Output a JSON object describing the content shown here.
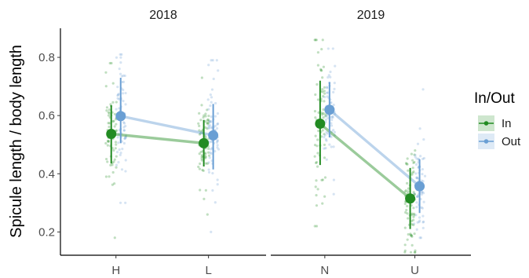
{
  "chart_data": {
    "type": "scatter",
    "ylabel": "Spicule length / body length",
    "ylim": [
      0.12,
      0.9
    ],
    "yticks": [
      0.2,
      0.4,
      0.6,
      0.8
    ],
    "grid": false,
    "legend_placement": "right",
    "legend_title": "In/Out",
    "series": [
      {
        "name": "In",
        "color": "#228B22"
      },
      {
        "name": "Out",
        "color": "#6A9FD4"
      }
    ],
    "panels": [
      {
        "title": "2018",
        "categories": [
          "H",
          "L"
        ],
        "means": {
          "In": [
            {
              "y": 0.537,
              "lo": 0.435,
              "hi": 0.635
            },
            {
              "y": 0.505,
              "lo": 0.425,
              "hi": 0.585
            }
          ],
          "Out": [
            {
              "y": 0.598,
              "lo": 0.505,
              "hi": 0.73
            },
            {
              "y": 0.532,
              "lo": 0.415,
              "hi": 0.64
            }
          ]
        },
        "raw_ranges": {
          "In": [
            [
              0.18,
              0.78
            ],
            [
              0.26,
              0.73
            ]
          ],
          "Out": [
            [
              0.3,
              0.81
            ],
            [
              0.2,
              0.79
            ]
          ]
        }
      },
      {
        "title": "2019",
        "categories": [
          "N",
          "U"
        ],
        "means": {
          "In": [
            {
              "y": 0.572,
              "lo": 0.43,
              "hi": 0.72
            },
            {
              "y": 0.315,
              "lo": 0.21,
              "hi": 0.42
            }
          ],
          "Out": [
            {
              "y": 0.62,
              "lo": 0.525,
              "hi": 0.715
            },
            {
              "y": 0.357,
              "lo": 0.265,
              "hi": 0.45
            }
          ]
        },
        "raw_ranges": {
          "In": [
            [
              0.22,
              0.86
            ],
            [
              0.13,
              0.48
            ]
          ],
          "Out": [
            [
              0.33,
              0.83
            ],
            [
              0.18,
              0.69
            ]
          ]
        }
      }
    ]
  }
}
